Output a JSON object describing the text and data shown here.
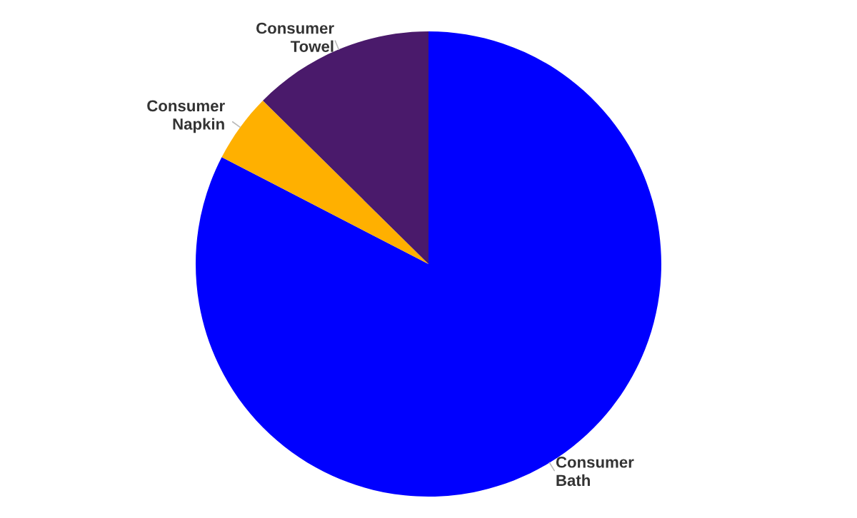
{
  "chart_data": {
    "type": "pie",
    "categories": [
      "Consumer\nBath",
      "Consumer\nNapkin",
      "Consumer\nTowel"
    ],
    "values": [
      82.6,
      4.8,
      12.6
    ],
    "colors": [
      "#0000ff",
      "#ffb000",
      "#4a1a6b"
    ]
  }
}
